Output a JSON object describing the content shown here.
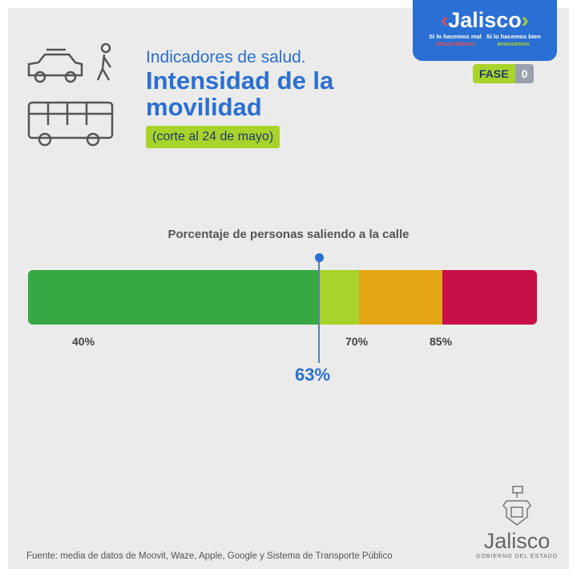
{
  "brand": {
    "logo": "Jalisco",
    "tag_left": "Si lo hacemos mal",
    "tag_left_2": "retrocedemos",
    "tag_right": "Si lo hacemos bien",
    "tag_right_2": "avanzamos",
    "fase_label": "FASE",
    "fase_value": "0",
    "colors": {
      "blue": "#2a6fd3",
      "green": "#a8d32a",
      "red": "#f04a4a"
    }
  },
  "header": {
    "line1": "Indicadores de salud.",
    "line2": "Intensidad de la movilidad",
    "date": "(corte al 24 de mayo)",
    "icons": [
      "car-icon",
      "pedestrian-icon",
      "bus-icon"
    ]
  },
  "chart_data": {
    "type": "bar",
    "title": "Porcentaje de personas saliendo a la calle",
    "segments": [
      {
        "color": "#38a845"
      },
      {
        "color": "#a8d32a"
      },
      {
        "color": "#e4a515"
      },
      {
        "color": "#c80f48"
      }
    ],
    "tick_labels": [
      "40%",
      "70%",
      "85%"
    ],
    "marker": {
      "value": 63,
      "label": "63%",
      "color": "#2a6fd3"
    }
  },
  "footer": {
    "source": "Fuente: media de datos de Moovit, Waze, Apple, Google y Sistema de Transporte Público",
    "gov_logo": "Jalisco",
    "gov_sub": "GOBIERNO DEL ESTADO"
  }
}
